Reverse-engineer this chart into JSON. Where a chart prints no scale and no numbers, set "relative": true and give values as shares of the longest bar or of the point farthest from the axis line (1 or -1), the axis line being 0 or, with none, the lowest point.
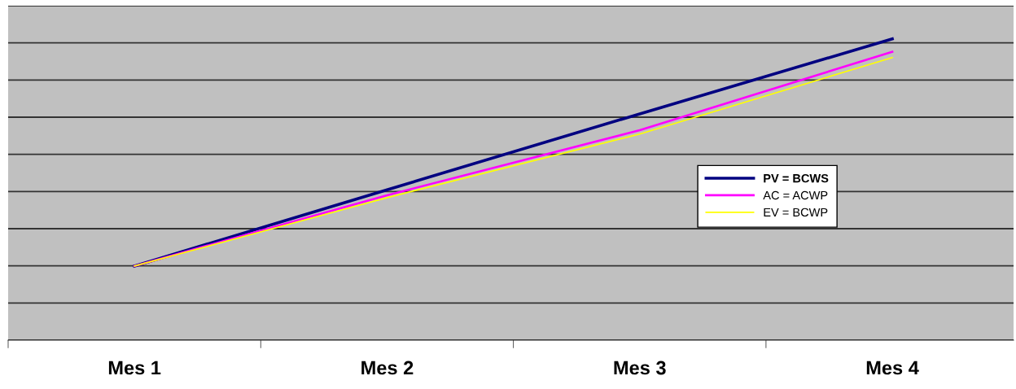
{
  "chart_data": {
    "type": "line",
    "relative": true,
    "grid": "y",
    "legend": "right",
    "categories": [
      "Mes 1",
      "Mes 2",
      "Mes 3",
      "Mes 4"
    ],
    "series": [
      {
        "name": "PV = BCWS",
        "color": "#000080",
        "values": [
          0.246,
          0.499,
          0.751,
          1
        ]
      },
      {
        "name": "AC = ACWP",
        "color": "#ff00ff",
        "values": [
          0.246,
          0.481,
          0.697,
          0.957
        ]
      },
      {
        "name": "EV = BCWP",
        "color": "#ffff00",
        "values": [
          0.246,
          0.473,
          0.684,
          0.938
        ]
      }
    ]
  }
}
